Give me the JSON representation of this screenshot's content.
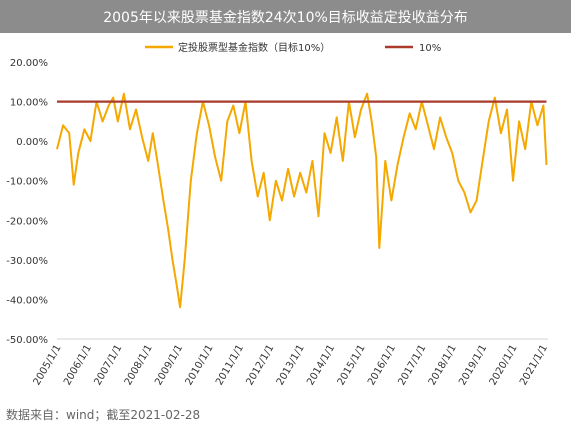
{
  "chart_data": {
    "type": "line",
    "title": "2005年以来股票基金指数24次10%目标收益定投收益分布",
    "xlabel": "",
    "ylabel": "",
    "ylim": [
      -0.5,
      0.2
    ],
    "y_ticks": [
      "20.00%",
      "10.00%",
      "0.00%",
      "-10.00%",
      "-20.00%",
      "-30.00%",
      "-40.00%",
      "-50.00%"
    ],
    "x_ticks": [
      "2005/1/1",
      "2006/1/1",
      "2007/1/1",
      "2008/1/1",
      "2009/1/1",
      "2010/1/1",
      "2011/1/1",
      "2012/1/1",
      "2013/1/1",
      "2014/1/1",
      "2015/1/1",
      "2016/1/1",
      "2017/1/1",
      "2018/1/1",
      "2019/1/1",
      "2020/1/1",
      "2021/1/1"
    ],
    "grid": false,
    "legend_position": "top",
    "series": [
      {
        "name": "定投股票型基金指数（目标10%）",
        "color": "#f5a800",
        "x": [
          2005.0,
          2005.2,
          2005.4,
          2005.55,
          2005.7,
          2005.9,
          2006.1,
          2006.3,
          2006.5,
          2006.7,
          2006.85,
          2007.0,
          2007.2,
          2007.4,
          2007.6,
          2007.8,
          2008.0,
          2008.15,
          2008.3,
          2008.5,
          2008.65,
          2008.8,
          2008.95,
          2009.05,
          2009.2,
          2009.4,
          2009.6,
          2009.8,
          2010.0,
          2010.2,
          2010.4,
          2010.6,
          2010.8,
          2011.0,
          2011.2,
          2011.4,
          2011.6,
          2011.8,
          2012.0,
          2012.2,
          2012.4,
          2012.6,
          2012.8,
          2013.0,
          2013.2,
          2013.4,
          2013.6,
          2013.8,
          2014.0,
          2014.2,
          2014.4,
          2014.6,
          2014.8,
          2015.0,
          2015.2,
          2015.35,
          2015.5,
          2015.6,
          2015.8,
          2016.0,
          2016.2,
          2016.4,
          2016.6,
          2016.8,
          2017.0,
          2017.2,
          2017.4,
          2017.6,
          2017.8,
          2018.0,
          2018.2,
          2018.4,
          2018.6,
          2018.8,
          2019.0,
          2019.2,
          2019.4,
          2019.6,
          2019.8,
          2020.0,
          2020.2,
          2020.4,
          2020.6,
          2020.8,
          2021.0,
          2021.1
        ],
        "values": [
          -0.02,
          0.04,
          0.02,
          -0.11,
          -0.03,
          0.03,
          0.0,
          0.1,
          0.05,
          0.09,
          0.11,
          0.05,
          0.12,
          0.03,
          0.08,
          0.01,
          -0.05,
          0.02,
          -0.05,
          -0.15,
          -0.22,
          -0.3,
          -0.37,
          -0.42,
          -0.3,
          -0.1,
          0.02,
          0.1,
          0.04,
          -0.04,
          -0.1,
          0.05,
          0.09,
          0.02,
          0.1,
          -0.05,
          -0.14,
          -0.08,
          -0.2,
          -0.1,
          -0.15,
          -0.07,
          -0.14,
          -0.08,
          -0.13,
          -0.05,
          -0.19,
          0.02,
          -0.03,
          0.06,
          -0.05,
          0.1,
          0.01,
          0.08,
          0.12,
          0.05,
          -0.04,
          -0.27,
          -0.05,
          -0.15,
          -0.06,
          0.01,
          0.07,
          0.03,
          0.1,
          0.04,
          -0.02,
          0.06,
          0.01,
          -0.03,
          -0.1,
          -0.13,
          -0.18,
          -0.15,
          -0.05,
          0.05,
          0.11,
          0.02,
          0.08,
          -0.1,
          0.05,
          -0.02,
          0.1,
          0.04,
          0.09,
          -0.06
        ]
      },
      {
        "name": "10%",
        "color": "#a93a2c",
        "x": [
          2005.0,
          2021.1
        ],
        "values": [
          0.1,
          0.1
        ]
      }
    ]
  },
  "source_note": "数据来自：wind；截至2021-02-28"
}
